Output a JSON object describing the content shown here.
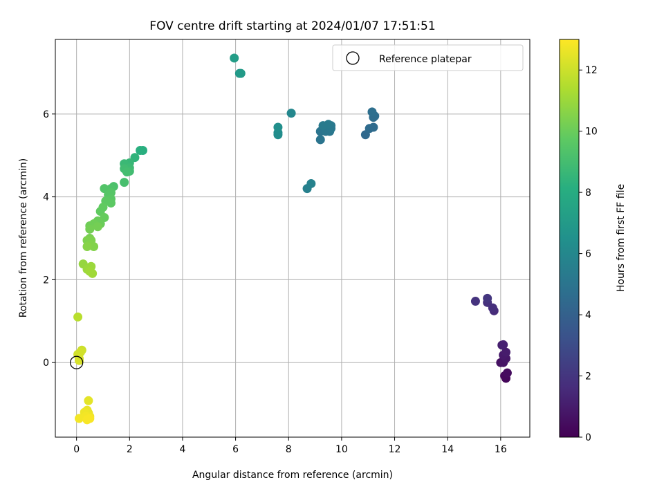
{
  "chart_data": {
    "type": "scatter",
    "title": "FOV centre drift starting at 2024/01/07 17:51:51",
    "xlabel": "Angular distance from reference (arcmin)",
    "ylabel": "Rotation from reference (arcmin)",
    "xlim": [
      -0.8,
      17.1
    ],
    "ylim": [
      -1.8,
      7.8
    ],
    "xticks": [
      0,
      2,
      4,
      6,
      8,
      10,
      12,
      14,
      16
    ],
    "yticks": [
      0,
      2,
      4,
      6
    ],
    "grid": true,
    "legend": {
      "position": "top-right",
      "entries": [
        "Reference platepar"
      ]
    },
    "reference_point": {
      "x": 0,
      "y": 0
    },
    "colorbar": {
      "label": "Hours from first FF file",
      "range": [
        0,
        13
      ],
      "ticks": [
        0,
        2,
        4,
        6,
        8,
        10,
        12
      ],
      "colormap": "viridis"
    },
    "points": [
      {
        "x": 16.2,
        "y": -0.38,
        "h": 0.2
      },
      {
        "x": 16.15,
        "y": -0.32,
        "h": 0.3
      },
      {
        "x": 16.25,
        "y": -0.25,
        "h": 0.4
      },
      {
        "x": 16.0,
        "y": 0.0,
        "h": 0.6
      },
      {
        "x": 16.1,
        "y": 0.0,
        "h": 0.7
      },
      {
        "x": 16.2,
        "y": 0.1,
        "h": 0.8
      },
      {
        "x": 16.1,
        "y": 0.18,
        "h": 0.9
      },
      {
        "x": 16.2,
        "y": 0.25,
        "h": 1.0
      },
      {
        "x": 16.05,
        "y": 0.42,
        "h": 1.1
      },
      {
        "x": 16.1,
        "y": 0.43,
        "h": 1.2
      },
      {
        "x": 15.75,
        "y": 1.25,
        "h": 1.6
      },
      {
        "x": 15.7,
        "y": 1.32,
        "h": 1.7
      },
      {
        "x": 15.5,
        "y": 1.45,
        "h": 1.8
      },
      {
        "x": 15.05,
        "y": 1.48,
        "h": 1.9
      },
      {
        "x": 15.5,
        "y": 1.55,
        "h": 2.0
      },
      {
        "x": 10.9,
        "y": 5.5,
        "h": 4.4
      },
      {
        "x": 11.05,
        "y": 5.65,
        "h": 4.5
      },
      {
        "x": 11.2,
        "y": 5.68,
        "h": 4.5
      },
      {
        "x": 11.2,
        "y": 5.92,
        "h": 4.6
      },
      {
        "x": 11.25,
        "y": 5.95,
        "h": 4.6
      },
      {
        "x": 11.15,
        "y": 6.05,
        "h": 4.7
      },
      {
        "x": 9.2,
        "y": 5.38,
        "h": 5.0
      },
      {
        "x": 9.2,
        "y": 5.58,
        "h": 5.0
      },
      {
        "x": 9.4,
        "y": 5.58,
        "h": 5.1
      },
      {
        "x": 9.55,
        "y": 5.58,
        "h": 5.1
      },
      {
        "x": 9.6,
        "y": 5.65,
        "h": 5.2
      },
      {
        "x": 9.6,
        "y": 5.72,
        "h": 5.2
      },
      {
        "x": 9.5,
        "y": 5.75,
        "h": 5.3
      },
      {
        "x": 9.3,
        "y": 5.72,
        "h": 5.3
      },
      {
        "x": 8.7,
        "y": 4.2,
        "h": 5.6
      },
      {
        "x": 8.85,
        "y": 4.32,
        "h": 5.7
      },
      {
        "x": 8.1,
        "y": 6.02,
        "h": 6.0
      },
      {
        "x": 7.6,
        "y": 5.5,
        "h": 6.3
      },
      {
        "x": 7.6,
        "y": 5.55,
        "h": 6.3
      },
      {
        "x": 7.6,
        "y": 5.68,
        "h": 6.4
      },
      {
        "x": 6.15,
        "y": 6.98,
        "h": 6.9
      },
      {
        "x": 6.2,
        "y": 6.98,
        "h": 7.0
      },
      {
        "x": 5.95,
        "y": 7.35,
        "h": 7.2
      },
      {
        "x": 2.5,
        "y": 5.12,
        "h": 8.1
      },
      {
        "x": 2.4,
        "y": 5.12,
        "h": 8.2
      },
      {
        "x": 2.2,
        "y": 4.95,
        "h": 8.4
      },
      {
        "x": 2.0,
        "y": 4.82,
        "h": 8.6
      },
      {
        "x": 1.8,
        "y": 4.8,
        "h": 8.7
      },
      {
        "x": 2.0,
        "y": 4.7,
        "h": 8.8
      },
      {
        "x": 2.0,
        "y": 4.62,
        "h": 8.9
      },
      {
        "x": 1.8,
        "y": 4.68,
        "h": 8.9
      },
      {
        "x": 1.9,
        "y": 4.6,
        "h": 9.0
      },
      {
        "x": 1.8,
        "y": 4.35,
        "h": 9.1
      },
      {
        "x": 1.4,
        "y": 4.25,
        "h": 9.2
      },
      {
        "x": 1.3,
        "y": 4.2,
        "h": 9.3
      },
      {
        "x": 1.05,
        "y": 4.2,
        "h": 9.4
      },
      {
        "x": 1.3,
        "y": 4.1,
        "h": 9.5
      },
      {
        "x": 1.2,
        "y": 4.05,
        "h": 9.5
      },
      {
        "x": 1.3,
        "y": 3.95,
        "h": 9.6
      },
      {
        "x": 1.1,
        "y": 3.9,
        "h": 9.7
      },
      {
        "x": 1.3,
        "y": 3.85,
        "h": 9.7
      },
      {
        "x": 1.0,
        "y": 3.75,
        "h": 9.8
      },
      {
        "x": 0.9,
        "y": 3.65,
        "h": 9.8
      },
      {
        "x": 1.05,
        "y": 3.5,
        "h": 9.9
      },
      {
        "x": 0.8,
        "y": 3.42,
        "h": 10.0
      },
      {
        "x": 0.9,
        "y": 3.35,
        "h": 10.0
      },
      {
        "x": 0.65,
        "y": 3.35,
        "h": 10.1
      },
      {
        "x": 0.5,
        "y": 3.3,
        "h": 10.1
      },
      {
        "x": 0.5,
        "y": 3.22,
        "h": 10.2
      },
      {
        "x": 0.8,
        "y": 3.28,
        "h": 10.2
      },
      {
        "x": 0.5,
        "y": 3.0,
        "h": 10.3
      },
      {
        "x": 0.4,
        "y": 2.95,
        "h": 10.4
      },
      {
        "x": 0.55,
        "y": 2.95,
        "h": 10.4
      },
      {
        "x": 0.5,
        "y": 2.85,
        "h": 10.5
      },
      {
        "x": 0.65,
        "y": 2.8,
        "h": 10.5
      },
      {
        "x": 0.4,
        "y": 2.8,
        "h": 10.6
      },
      {
        "x": 0.25,
        "y": 2.38,
        "h": 10.9
      },
      {
        "x": 0.55,
        "y": 2.32,
        "h": 11.0
      },
      {
        "x": 0.4,
        "y": 2.25,
        "h": 11.0
      },
      {
        "x": 0.6,
        "y": 2.15,
        "h": 11.1
      },
      {
        "x": 0.5,
        "y": 2.2,
        "h": 11.1
      },
      {
        "x": 0.05,
        "y": 1.1,
        "h": 11.6
      },
      {
        "x": 0.2,
        "y": 0.3,
        "h": 12.0
      },
      {
        "x": 0.15,
        "y": 0.25,
        "h": 12.1
      },
      {
        "x": 0.05,
        "y": 0.2,
        "h": 12.1
      },
      {
        "x": 0.1,
        "y": 0.1,
        "h": 12.2
      },
      {
        "x": 0.1,
        "y": 0.05,
        "h": 12.2
      },
      {
        "x": 0.45,
        "y": -0.92,
        "h": 12.5
      },
      {
        "x": 0.4,
        "y": -1.15,
        "h": 12.6
      },
      {
        "x": 0.45,
        "y": -1.22,
        "h": 12.6
      },
      {
        "x": 0.3,
        "y": -1.2,
        "h": 12.7
      },
      {
        "x": 0.5,
        "y": -1.3,
        "h": 12.7
      },
      {
        "x": 0.35,
        "y": -1.3,
        "h": 12.8
      },
      {
        "x": 0.1,
        "y": -1.35,
        "h": 12.8
      },
      {
        "x": 0.4,
        "y": -1.38,
        "h": 12.9
      },
      {
        "x": 0.5,
        "y": -1.35,
        "h": 12.9
      }
    ]
  }
}
